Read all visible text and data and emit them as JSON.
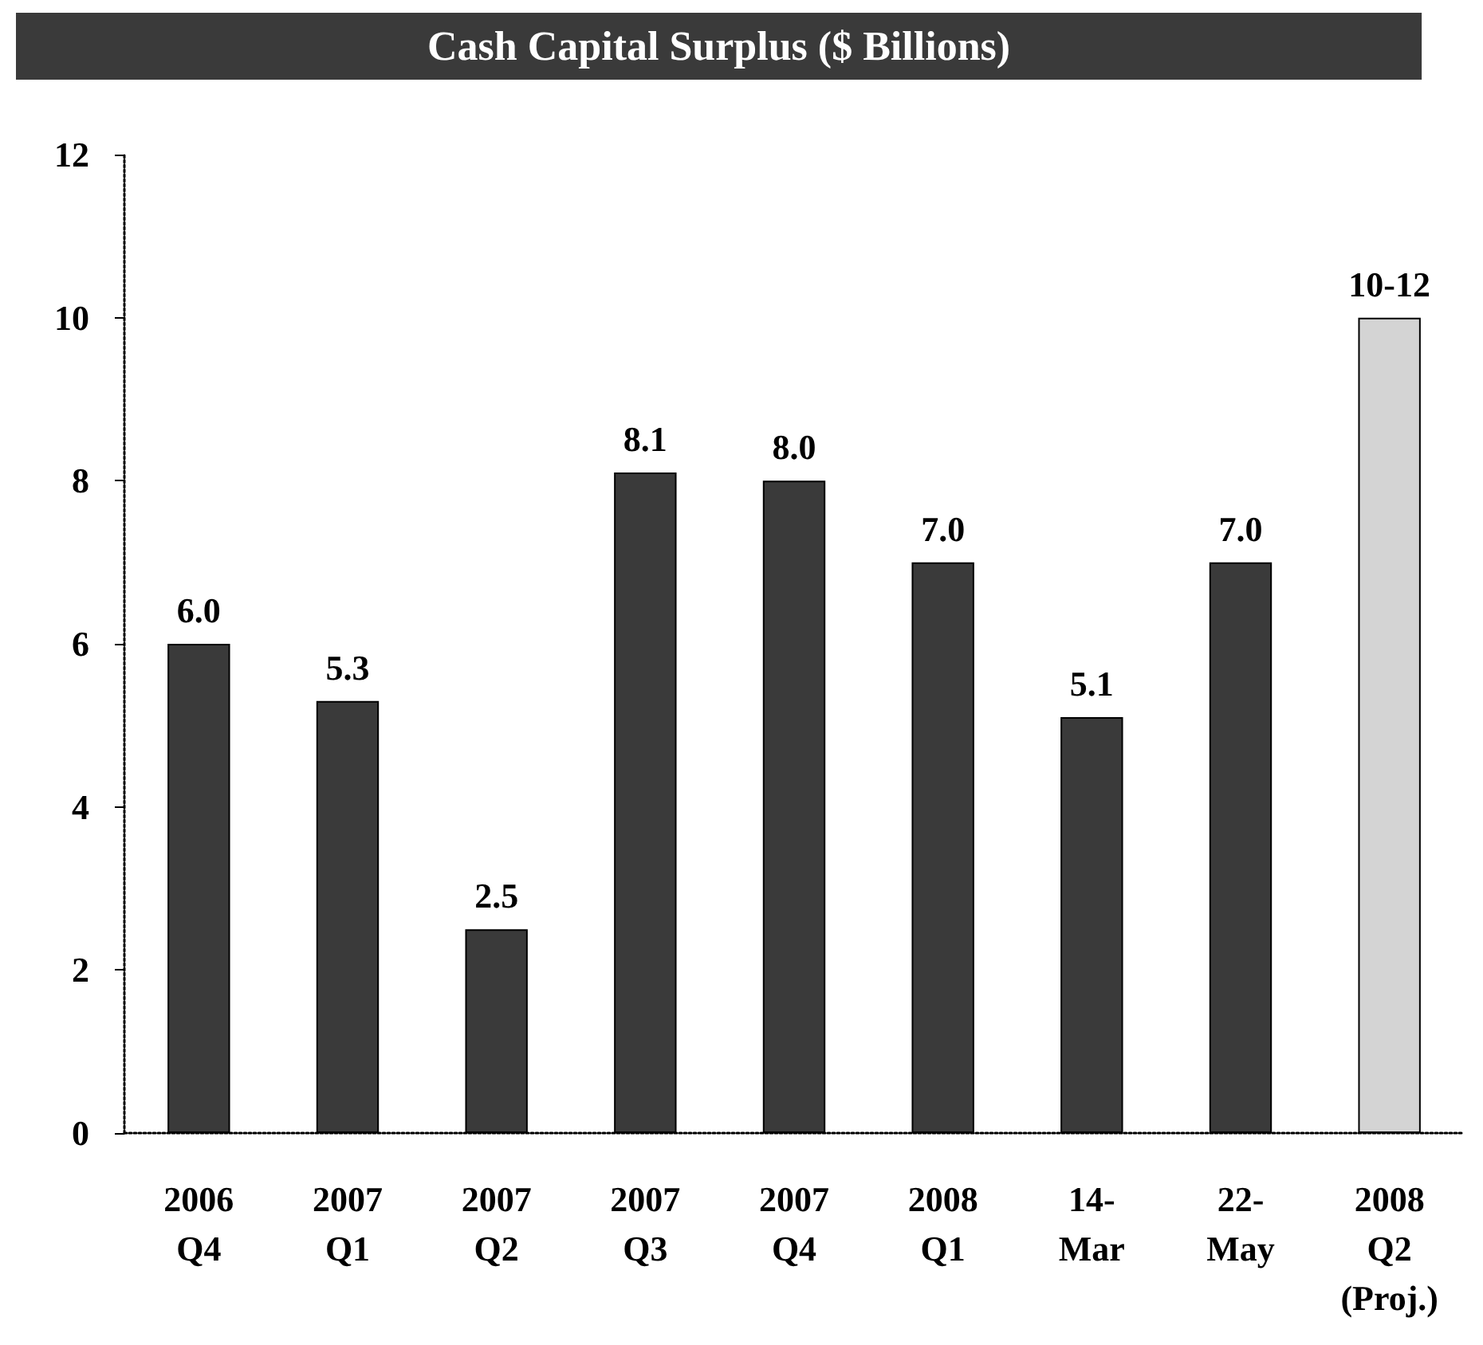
{
  "chart_data": {
    "type": "bar",
    "title": "Cash Capital Surplus ($ Billions)",
    "categories": [
      "2006\nQ4",
      "2007\nQ1",
      "2007\nQ2",
      "2007\nQ3",
      "2007\nQ4",
      "2008\nQ1",
      "14-\nMar",
      "22-\nMay",
      "2008\nQ2\n(Proj.)"
    ],
    "values": [
      6.0,
      5.3,
      2.5,
      8.1,
      8.0,
      7.0,
      5.1,
      7.0,
      10
    ],
    "colors": [
      "#3a3a3a",
      "#3a3a3a",
      "#3a3a3a",
      "#3a3a3a",
      "#3a3a3a",
      "#3a3a3a",
      "#3a3a3a",
      "#3a3a3a",
      "#d4d4d4"
    ],
    "value_labels": [
      "6.0",
      "5.3",
      "2.5",
      "8.1",
      "8.0",
      "7.0",
      "5.1",
      "7.0",
      "10-12"
    ],
    "ylim": [
      0,
      12
    ],
    "yticks": [
      0,
      2,
      4,
      6,
      8,
      10,
      12
    ]
  }
}
